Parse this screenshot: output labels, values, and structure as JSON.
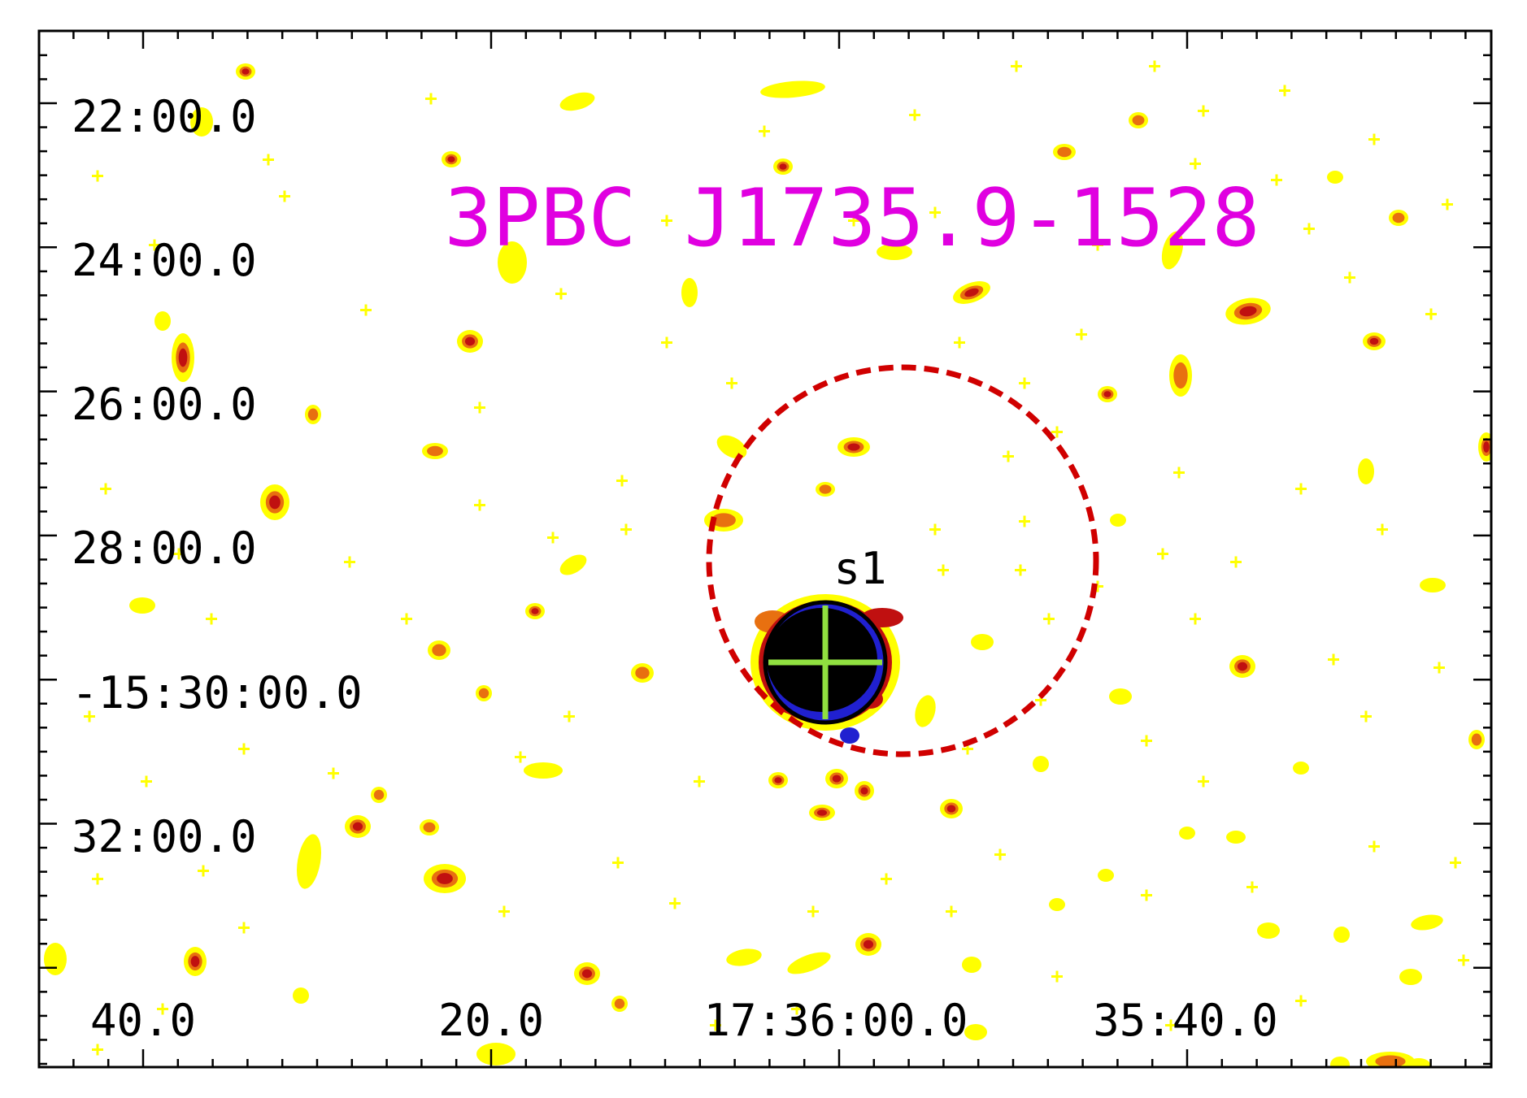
{
  "image": {
    "title": "3PBC J1735.9-1528",
    "colors": {
      "title": "#e000e0",
      "frame": "#000000",
      "error_circle": "#d00000",
      "source_circle": "#000000",
      "crosshair": "#90e040",
      "blob_faint": "#ffff00",
      "blob_mid": "#e87010",
      "blob_bright": "#c01010",
      "blob_peak": "#000000",
      "blob_edge": "#2020d0"
    },
    "y_ticks": [
      "22:00.0",
      "24:00.0",
      "26:00.0",
      "28:00.0",
      "-15:30:00.0",
      "32:00.0"
    ],
    "x_ticks": [
      "40.0",
      "20.0",
      "17:36:00.0",
      "35:40.0"
    ],
    "source": {
      "label": "s1"
    },
    "error_circle_style": "dashed",
    "crosshair_icon": "plus-crosshair"
  }
}
